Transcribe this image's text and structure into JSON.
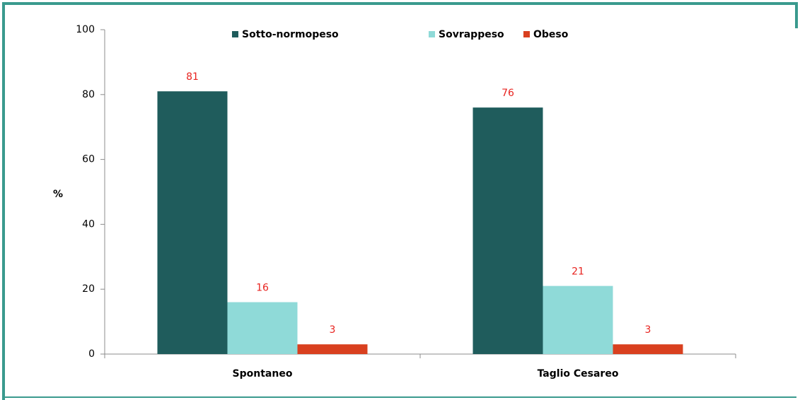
{
  "chart_data": {
    "type": "bar",
    "categories": [
      "Spontaneo",
      "Taglio Cesareo"
    ],
    "series": [
      {
        "name": "Sotto-normopeso",
        "color": "#1f5c5c",
        "values": [
          81,
          76
        ]
      },
      {
        "name": "Sovrappeso",
        "color": "#8fdad8",
        "values": [
          16,
          21
        ]
      },
      {
        "name": "Obeso",
        "color": "#d9401f",
        "values": [
          3,
          3
        ]
      }
    ],
    "y_label": "%",
    "ylim": [
      0,
      100
    ],
    "yticks": [
      0,
      20,
      40,
      60,
      80,
      100
    ],
    "legend": "top",
    "grid": false,
    "value_label_color": "#e8231f"
  }
}
